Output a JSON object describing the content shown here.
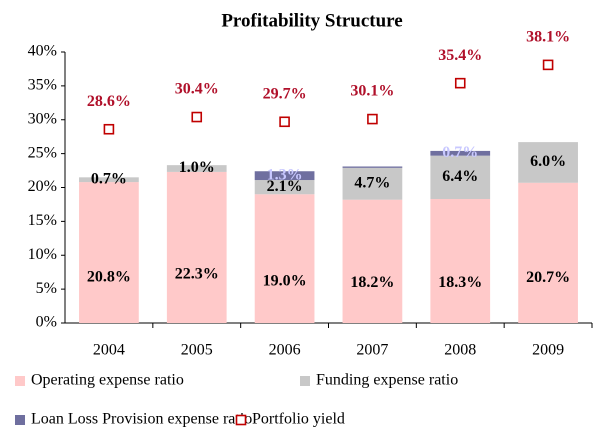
{
  "chart_data": {
    "type": "bar",
    "stacked": true,
    "title": "Profitability Structure",
    "categories": [
      "2004",
      "2005",
      "2006",
      "2007",
      "2008",
      "2009"
    ],
    "series": [
      {
        "name": "Operating expense ratio",
        "color": "#ffc9c9",
        "label_color": "#000000",
        "values": [
          20.8,
          22.3,
          19.0,
          18.2,
          18.3,
          20.7
        ],
        "value_labels": [
          "20.8%",
          "22.3%",
          "19.0%",
          "18.2%",
          "18.3%",
          "20.7%"
        ]
      },
      {
        "name": "Funding expense ratio",
        "color": "#c8c8c8",
        "label_color": "#000000",
        "values": [
          0.7,
          1.0,
          2.1,
          4.7,
          6.4,
          6.0
        ],
        "value_labels": [
          "0.7%",
          "1.0%",
          "2.1%",
          "4.7%",
          "6.4%",
          "6.0%"
        ]
      },
      {
        "name": "Loan Loss Provision expense ratio",
        "color": "#6f6f9f",
        "label_color": "#c8c8ff",
        "values": [
          null,
          null,
          1.3,
          0.2,
          0.7,
          null
        ],
        "value_labels": [
          null,
          null,
          "1.3%",
          null,
          "0.7%",
          null
        ]
      },
      {
        "name": "Portfolio yield",
        "type": "scatter",
        "color": "#c00000",
        "label_color": "#b0102a",
        "values": [
          28.6,
          30.4,
          29.7,
          30.1,
          35.4,
          38.1
        ],
        "value_labels": [
          "28.6%",
          "30.4%",
          "29.7%",
          "30.1%",
          "35.4%",
          "38.1%"
        ]
      }
    ],
    "ylim": [
      0,
      40
    ],
    "yticks": [
      {
        "value": 0,
        "label": "0%"
      },
      {
        "value": 5,
        "label": "5%"
      },
      {
        "value": 10,
        "label": "10%"
      },
      {
        "value": 15,
        "label": "15%"
      },
      {
        "value": 20,
        "label": "20%"
      },
      {
        "value": 25,
        "label": "25%"
      },
      {
        "value": 30,
        "label": "30%"
      },
      {
        "value": 35,
        "label": "35%"
      },
      {
        "value": 40,
        "label": "40%"
      }
    ],
    "grid": false,
    "legend": "bottom"
  }
}
